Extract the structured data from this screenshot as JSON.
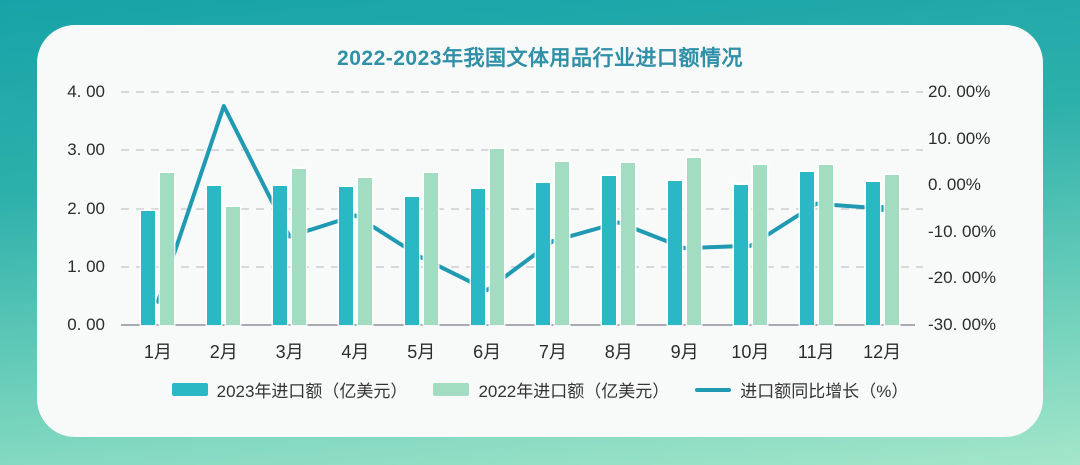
{
  "page": {
    "background_top_color": "#17a3a8",
    "background_bottom_color": "#a3e6ca",
    "card_color": "#f8faf9"
  },
  "chart_data": {
    "type": "bar+line combo",
    "title": "2022-2023年我国文体用品行业进口额情况",
    "title_color": "#2f90a7",
    "categories": [
      "1月",
      "2月",
      "3月",
      "4月",
      "5月",
      "6月",
      "7月",
      "8月",
      "9月",
      "10月",
      "11月",
      "12月"
    ],
    "series": [
      {
        "name": "2023年进口额（亿美元）",
        "type": "bar",
        "axis": "left",
        "color": "#29b8c4",
        "values": [
          1.95,
          2.38,
          2.38,
          2.37,
          2.2,
          2.34,
          2.44,
          2.55,
          2.47,
          2.4,
          2.62,
          2.45
        ]
      },
      {
        "name": "2022年进口额（亿美元）",
        "type": "bar",
        "axis": "left",
        "color": "#a2dcc1",
        "values": [
          2.61,
          2.03,
          2.68,
          2.53,
          2.61,
          3.03,
          2.8,
          2.78,
          2.86,
          2.74,
          2.74,
          2.58
        ]
      },
      {
        "name": "进口额同比增长（%）",
        "type": "line",
        "axis": "right",
        "color": "#1f9ab2",
        "values": [
          -25.0,
          17.0,
          -11.0,
          -6.5,
          -15.5,
          -22.5,
          -12.0,
          -8.0,
          -13.5,
          -13.0,
          -4.0,
          -5.0
        ]
      }
    ],
    "left_axis": {
      "min": 0,
      "max": 4,
      "ticks": [
        "4. 00",
        "3. 00",
        "2. 00",
        "1. 00",
        "0. 00"
      ]
    },
    "right_axis": {
      "min": -30,
      "max": 20,
      "ticks": [
        "20. 00%",
        "10. 00%",
        "0. 00%",
        "-10. 00%",
        "-20. 00%",
        "-30. 00%"
      ]
    },
    "grid": "horizontal dashed gridlines at left-axis ticks, solid baseline",
    "legend_position": "bottom-center"
  }
}
